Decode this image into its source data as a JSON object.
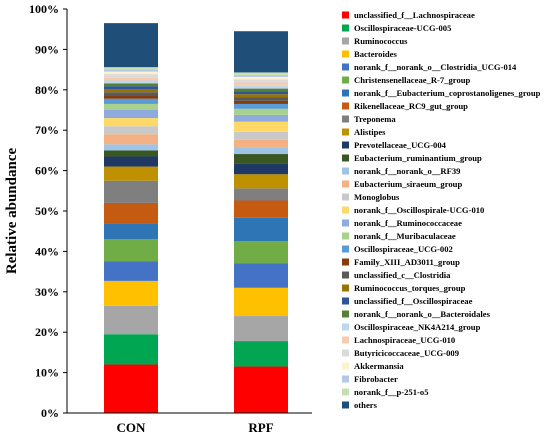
{
  "chart_data": {
    "type": "bar",
    "stacked": true,
    "percent": true,
    "categories": [
      "CON",
      "RPF"
    ],
    "ylabel": "Relative abundance",
    "ylim": [
      0,
      100
    ],
    "yticks": [
      "0%",
      "10%",
      "20%",
      "30%",
      "40%",
      "50%",
      "60%",
      "70%",
      "80%",
      "90%",
      "100%"
    ],
    "legend_position": "right",
    "series": [
      {
        "name": "unclassified_f__Lachnospiraceae",
        "color": "#ff0000",
        "values": [
          12.0,
          11.5
        ]
      },
      {
        "name": "Oscillospiraceae-UCG-005",
        "color": "#00a651",
        "values": [
          7.5,
          6.3
        ]
      },
      {
        "name": "Ruminococcus",
        "color": "#a6a6a6",
        "values": [
          7.0,
          6.2
        ]
      },
      {
        "name": "Bacteroides",
        "color": "#ffc000",
        "values": [
          6.2,
          7.0
        ]
      },
      {
        "name": "norank_f__norank_o__Clostridia_UCG-014",
        "color": "#4472c4",
        "values": [
          4.8,
          6.0
        ]
      },
      {
        "name": "Christensenellaceae_R-7_group",
        "color": "#70ad47",
        "values": [
          5.5,
          5.5
        ]
      },
      {
        "name": "norank_f__Eubacterium_coprostanoligenes_group",
        "color": "#2e75b6",
        "values": [
          4.0,
          5.8
        ]
      },
      {
        "name": "Rikenellaceae_RC9_gut_group",
        "color": "#c55a11",
        "values": [
          5.0,
          4.3
        ]
      },
      {
        "name": "Treponema",
        "color": "#7f7f7f",
        "values": [
          5.5,
          3.0
        ]
      },
      {
        "name": "Alistipes",
        "color": "#bf9000",
        "values": [
          3.5,
          3.5
        ]
      },
      {
        "name": "Prevotellaceae_UCG-004",
        "color": "#203864",
        "values": [
          2.5,
          2.7
        ]
      },
      {
        "name": "Eubacterium_ruminantium_group",
        "color": "#385723",
        "values": [
          1.5,
          2.3
        ]
      },
      {
        "name": "norank_f__norank_o__RF39",
        "color": "#9dc3e6",
        "values": [
          1.5,
          1.5
        ]
      },
      {
        "name": "Eubacterium_siraeum_group",
        "color": "#f4b183",
        "values": [
          2.5,
          2.0
        ]
      },
      {
        "name": "Monoglobus",
        "color": "#c9c9c9",
        "values": [
          2.0,
          2.0
        ]
      },
      {
        "name": "norank_f__Oscillospirale-UCG-010",
        "color": "#ffd966",
        "values": [
          2.0,
          2.5
        ]
      },
      {
        "name": "norank_f__Ruminococcaceae",
        "color": "#8faadc",
        "values": [
          2.0,
          1.7
        ]
      },
      {
        "name": "norank_f__Muribaculaceae",
        "color": "#a9d18e",
        "values": [
          1.5,
          1.5
        ]
      },
      {
        "name": "Oscillospiraceae_UCG-002",
        "color": "#5b9bd5",
        "values": [
          1.3,
          1.2
        ]
      },
      {
        "name": "Family_XIII_AD3011_group",
        "color": "#843c0c",
        "values": [
          0.8,
          0.8
        ]
      },
      {
        "name": "unclassified_c__Clostridia",
        "color": "#595959",
        "values": [
          0.8,
          0.8
        ]
      },
      {
        "name": "Ruminococcus_torques_group",
        "color": "#997300",
        "values": [
          0.8,
          0.8
        ]
      },
      {
        "name": "unclassified_f__Oscillospiraceae",
        "color": "#2f5597",
        "values": [
          0.7,
          0.7
        ]
      },
      {
        "name": "norank_f__norank_o__Bacteroidales",
        "color": "#548235",
        "values": [
          0.7,
          0.7
        ]
      },
      {
        "name": "Oscillospiraceae_NK4A214_group",
        "color": "#bdd7ee",
        "values": [
          0.7,
          0.7
        ]
      },
      {
        "name": "Lachnospiraceae_UCG-010",
        "color": "#f8cbad",
        "values": [
          0.8,
          0.8
        ]
      },
      {
        "name": "Butyricicoccaceae_UCG-009",
        "color": "#dbdbdb",
        "values": [
          0.8,
          0.8
        ]
      },
      {
        "name": "Akkermansia",
        "color": "#fff2cc",
        "values": [
          0.6,
          0.6
        ]
      },
      {
        "name": "Fibrobacter",
        "color": "#b4c7e7",
        "values": [
          0.5,
          0.5
        ]
      },
      {
        "name": "norank_f__p-251-o5",
        "color": "#c5e0b4",
        "values": [
          0.6,
          0.6
        ]
      },
      {
        "name": "others",
        "color": "#1f4e79",
        "values": [
          10.9,
          10.2
        ]
      }
    ]
  }
}
